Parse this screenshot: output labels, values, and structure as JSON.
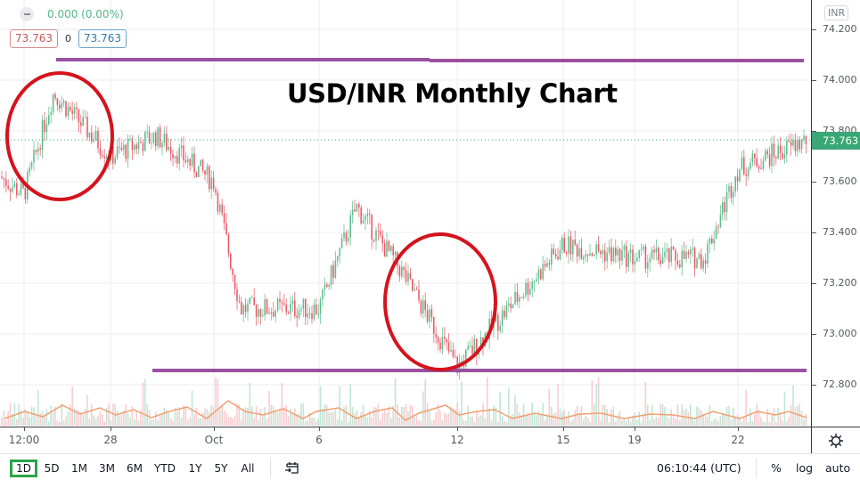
{
  "legend": {
    "change": "0.000 (0.00%)",
    "sell_price": "73.763",
    "spread": "0",
    "buy_price": "73.763",
    "minus_icon": "minus-circle-icon"
  },
  "title_overlay": "USD/INR Monthly Chart",
  "price_axis": {
    "currency": "INR",
    "ticks": [
      "74.200",
      "74.000",
      "73.800",
      "73.600",
      "73.400",
      "73.200",
      "73.000",
      "72.800"
    ],
    "last_price": "73.763",
    "last_price_color": "#3aa776"
  },
  "time_axis": {
    "labels": [
      "12:00",
      "28",
      "Oct",
      "6",
      "12",
      "15",
      "19",
      "22"
    ],
    "settings_icon": "gear-icon"
  },
  "bottom_bar": {
    "ranges": [
      "1D",
      "5D",
      "1M",
      "3M",
      "6M",
      "YTD",
      "1Y",
      "5Y",
      "All"
    ],
    "active_range": "1D",
    "goto_date_icon": "calendar-goto-icon",
    "clock": "06:10:44 (UTC)",
    "percent": "%",
    "log": "log",
    "auto": "auto"
  },
  "colors": {
    "up": "#53b987",
    "down": "#eb4d5c",
    "annotation_line": "#9b4f9f",
    "annotation_circle": "#d4141d",
    "volume_ma": "#f0a070",
    "accent_active": "#2ca44a"
  },
  "chart_data": {
    "type": "candlestick",
    "title": "USD/INR Monthly Chart",
    "symbol": "USD/INR",
    "currency": "INR",
    "xlabel": "",
    "ylabel": "INR",
    "ylim": [
      72.65,
      74.3
    ],
    "y_ticks": [
      72.8,
      73.0,
      73.2,
      73.4,
      73.6,
      73.8,
      74.0,
      74.2
    ],
    "x_tick_labels": [
      "12:00",
      "28",
      "Oct",
      "6",
      "12",
      "15",
      "19",
      "22"
    ],
    "grid": true,
    "last_price": 73.763,
    "approx_close_path": {
      "x": [
        "start",
        "12:00",
        "~26",
        "28",
        "~30",
        "Oct",
        "~3",
        "6",
        "~8",
        "~10",
        "12",
        "15",
        "19",
        "~21",
        "22",
        "end"
      ],
      "values": [
        73.62,
        73.55,
        73.95,
        73.7,
        73.78,
        73.6,
        73.1,
        73.1,
        73.5,
        73.25,
        72.87,
        73.35,
        73.3,
        73.3,
        73.65,
        73.763
      ]
    },
    "annotations": {
      "resistance_line": 74.08,
      "support_line": 72.85,
      "circles": [
        "top near 74.00 (late Sep)",
        "bottom near 72.87 (around 12 Oct)"
      ]
    },
    "volume_pane": true,
    "volume_ma": true
  }
}
